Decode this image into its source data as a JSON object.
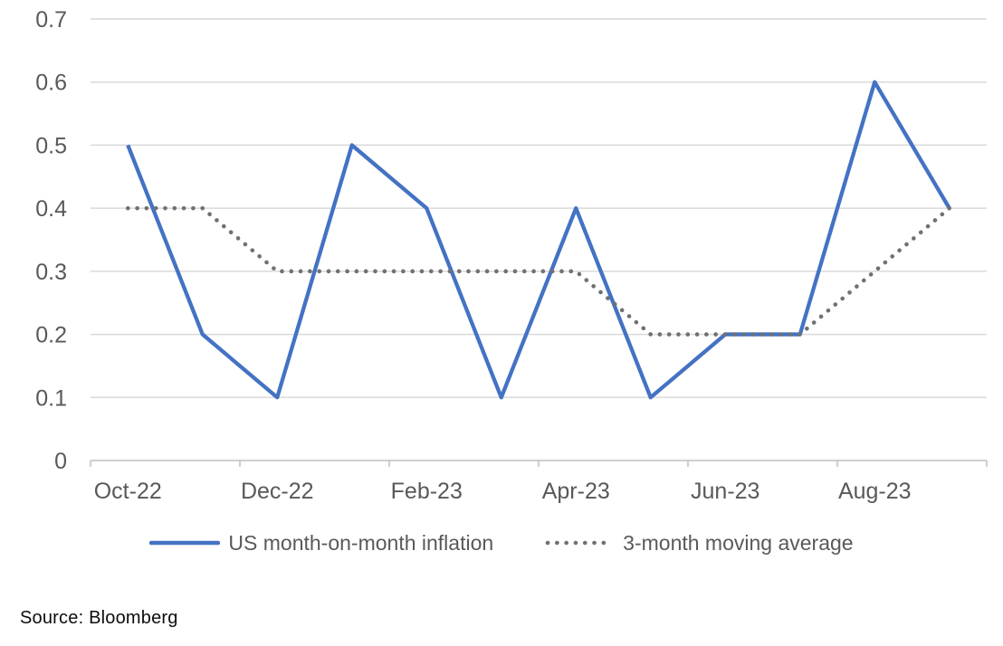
{
  "page": {
    "background": "#ffffff",
    "source_caption": "Source: Bloomberg"
  },
  "chart_data": {
    "type": "line",
    "title": "",
    "xlabel": "",
    "ylabel": "",
    "categories": [
      "Oct-22",
      "Nov-22",
      "Dec-22",
      "Jan-23",
      "Feb-23",
      "Mar-23",
      "Apr-23",
      "May-23",
      "Jun-23",
      "Jul-23",
      "Aug-23",
      "Sep-23"
    ],
    "x_tick_labels": [
      "Oct-22",
      "Dec-22",
      "Feb-23",
      "Apr-23",
      "Jun-23",
      "Aug-23"
    ],
    "x_label_every": 2,
    "y_tick_labels": [
      "0.7",
      "0.6",
      "0.5",
      "0.4",
      "0.3",
      "0.2",
      "0.1",
      "0"
    ],
    "ylim": [
      0,
      0.7
    ],
    "grid": "horizontal",
    "legend_position": "bottom",
    "series": [
      {
        "name": "US month-on-month inflation",
        "style": "solid",
        "color": "#4472C4",
        "values": [
          0.5,
          0.2,
          0.1,
          0.5,
          0.4,
          0.1,
          0.4,
          0.1,
          0.2,
          0.2,
          0.6,
          0.4
        ]
      },
      {
        "name": "3-month moving average",
        "style": "dotted",
        "color": "#717171",
        "values": [
          0.4,
          0.4,
          0.3,
          0.3,
          0.3,
          0.3,
          0.3,
          0.2,
          0.2,
          0.2,
          0.3,
          0.4
        ]
      }
    ],
    "colors": {
      "gridline": "#D9D9D9",
      "axis_line": "#BFBFBF",
      "tick_text": "#595959"
    }
  }
}
